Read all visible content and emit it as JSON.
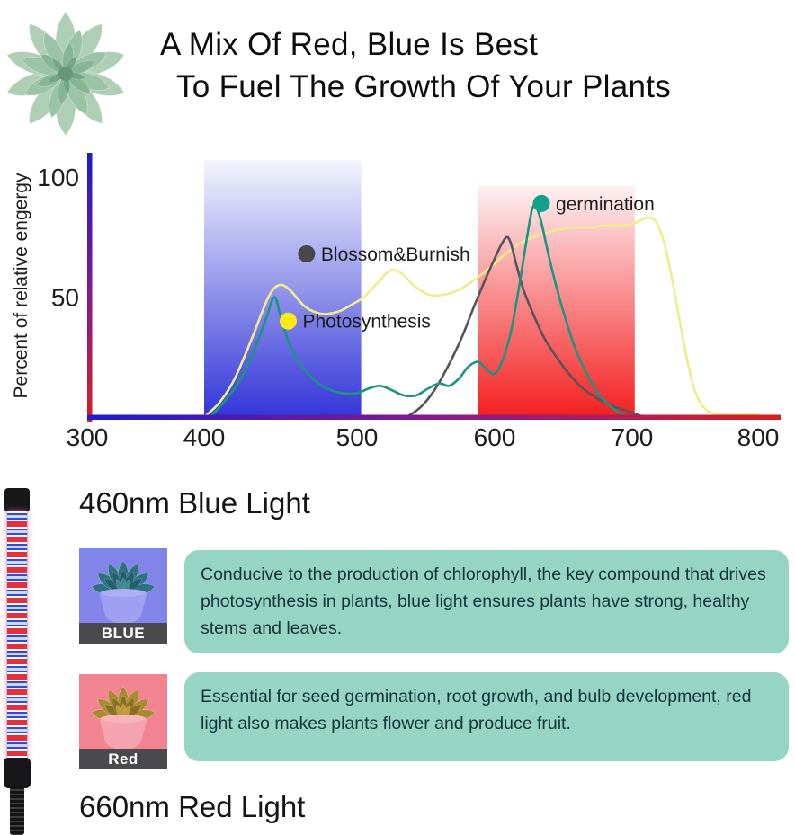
{
  "header": {
    "title_line1": "A Mix Of Red, Blue Is Best",
    "title_line2": "To Fuel The Growth Of Your Plants"
  },
  "chart_data": {
    "type": "line",
    "title": "",
    "xlabel": "",
    "ylabel": "Percent of relative engergy",
    "x_ticks": [
      300,
      400,
      500,
      600,
      700,
      800
    ],
    "y_ticks": [
      50,
      100
    ],
    "xlim": [
      300,
      815
    ],
    "ylim": [
      0,
      110
    ],
    "grid": false,
    "legend_position": "inside-plot",
    "axis_gradient": [
      "#1c1ccc",
      "#8a1a8a",
      "#d81f1f"
    ],
    "bands": [
      {
        "name": "blue-light-band",
        "from": 400,
        "to": 503,
        "top_pct": 107,
        "color_top": "#f3f5fd",
        "color_bottom": "#3336d8"
      },
      {
        "name": "red-light-band",
        "from": 588,
        "to": 702,
        "top_pct": 96.5,
        "color_top": "#fdf1f3",
        "color_bottom": "#f42020"
      }
    ],
    "series": [
      {
        "name": "Photosynthesis",
        "color": "#f0ec8c",
        "dot_color": "#ffe919",
        "points": [
          [
            400,
            0
          ],
          [
            410,
            6
          ],
          [
            420,
            16
          ],
          [
            432,
            34
          ],
          [
            442,
            50
          ],
          [
            449,
            55
          ],
          [
            456,
            53
          ],
          [
            466,
            46
          ],
          [
            477,
            43
          ],
          [
            488,
            44
          ],
          [
            497,
            47
          ],
          [
            505,
            50
          ],
          [
            515,
            56
          ],
          [
            524,
            61
          ],
          [
            532,
            60
          ],
          [
            541,
            55
          ],
          [
            552,
            51
          ],
          [
            563,
            51
          ],
          [
            574,
            53
          ],
          [
            585,
            57
          ],
          [
            596,
            62
          ],
          [
            608,
            68
          ],
          [
            620,
            73
          ],
          [
            633,
            76
          ],
          [
            646,
            78
          ],
          [
            658,
            79
          ],
          [
            670,
            79
          ],
          [
            682,
            80
          ],
          [
            694,
            80
          ],
          [
            703,
            81
          ],
          [
            711,
            83
          ],
          [
            718,
            82
          ],
          [
            724,
            75
          ],
          [
            730,
            62
          ],
          [
            736,
            45
          ],
          [
            742,
            28
          ],
          [
            748,
            14
          ],
          [
            754,
            6
          ],
          [
            762,
            2
          ],
          [
            775,
            1
          ],
          [
            800,
            1
          ]
        ]
      },
      {
        "name": "Blossom&Burnish",
        "color": "#54545a",
        "dot_color": "#48484c",
        "points": [
          [
            536,
            0
          ],
          [
            546,
            4
          ],
          [
            556,
            11
          ],
          [
            566,
            21
          ],
          [
            576,
            33
          ],
          [
            585,
            46
          ],
          [
            593,
            57
          ],
          [
            600,
            66
          ],
          [
            605,
            72
          ],
          [
            609,
            75
          ],
          [
            612,
            72
          ],
          [
            616,
            63
          ],
          [
            621,
            53
          ],
          [
            628,
            43
          ],
          [
            636,
            33
          ],
          [
            645,
            25
          ],
          [
            654,
            18
          ],
          [
            664,
            12
          ],
          [
            674,
            8
          ],
          [
            684,
            5
          ],
          [
            694,
            3
          ],
          [
            704,
            1
          ],
          [
            710,
            0
          ]
        ]
      },
      {
        "name": "germination",
        "color": "#1b9582",
        "dot_color": "#12a189",
        "points": [
          [
            404,
            0
          ],
          [
            414,
            7
          ],
          [
            424,
            16
          ],
          [
            434,
            30
          ],
          [
            441,
            42
          ],
          [
            446,
            50
          ],
          [
            450,
            42
          ],
          [
            456,
            30
          ],
          [
            463,
            22
          ],
          [
            471,
            16
          ],
          [
            480,
            12
          ],
          [
            490,
            10
          ],
          [
            500,
            10
          ],
          [
            509,
            12
          ],
          [
            517,
            13
          ],
          [
            526,
            11
          ],
          [
            534,
            9
          ],
          [
            543,
            9
          ],
          [
            552,
            12
          ],
          [
            560,
            14
          ],
          [
            567,
            13
          ],
          [
            574,
            16
          ],
          [
            581,
            21
          ],
          [
            588,
            23
          ],
          [
            594,
            20
          ],
          [
            600,
            18
          ],
          [
            606,
            24
          ],
          [
            612,
            36
          ],
          [
            618,
            55
          ],
          [
            623,
            73
          ],
          [
            627,
            86
          ],
          [
            630,
            88
          ],
          [
            634,
            81
          ],
          [
            639,
            68
          ],
          [
            645,
            54
          ],
          [
            652,
            40
          ],
          [
            659,
            28
          ],
          [
            667,
            18
          ],
          [
            675,
            10
          ],
          [
            683,
            5
          ],
          [
            690,
            2
          ],
          [
            697,
            0
          ]
        ]
      }
    ],
    "legend": [
      {
        "label": "germination",
        "x_nm": 634,
        "y_pct": 89
      },
      {
        "label": "Blossom&Burnish",
        "x_nm": 467,
        "y_pct": 68
      },
      {
        "label": "Photosynthesis",
        "x_nm": 455,
        "y_pct": 40
      }
    ]
  },
  "sections": {
    "blue": {
      "heading": "460nm Blue Light",
      "thumb_label": "BLUE",
      "body": "Conducive to the production of chlorophyll, the key compound that drives photosynthesis in plants, blue light ensures plants have strong, healthy stems and leaves."
    },
    "red": {
      "heading": "660nm Red Light",
      "thumb_label": "Red",
      "body": "Essential for seed germination, root growth, and bulb development, red light  also makes plants flower and produce fruit."
    }
  },
  "colors": {
    "info_box_bg": "#96d5c3",
    "info_box_text": "#14333b",
    "thumb_label_bg": "#4a4a4d",
    "blue_thumb_bg": "#8184e9",
    "red_thumb_bg": "#f28492",
    "title_text": "#0d0d0d"
  }
}
